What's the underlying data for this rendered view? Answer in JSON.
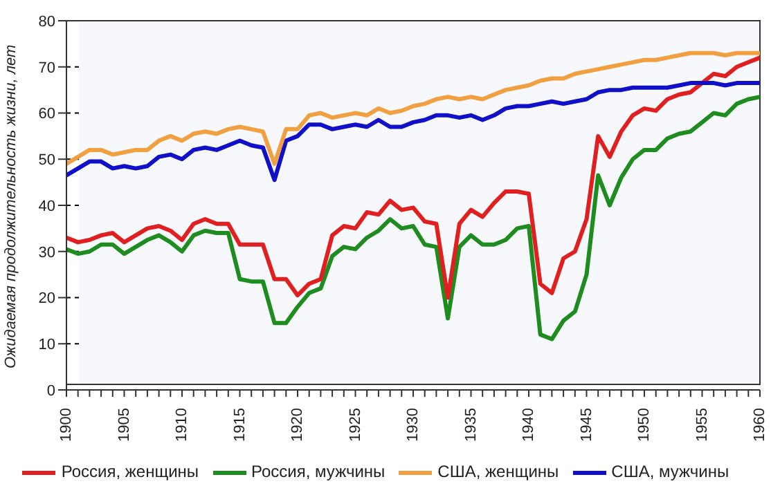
{
  "chart_data": {
    "type": "line",
    "ylabel": "Ожидаемая продолжительность жизни, лет",
    "x": [
      1900,
      1901,
      1902,
      1903,
      1904,
      1905,
      1906,
      1907,
      1908,
      1909,
      1910,
      1911,
      1912,
      1913,
      1914,
      1915,
      1916,
      1917,
      1918,
      1919,
      1920,
      1921,
      1922,
      1923,
      1924,
      1925,
      1926,
      1927,
      1928,
      1929,
      1930,
      1931,
      1932,
      1933,
      1934,
      1935,
      1936,
      1937,
      1938,
      1939,
      1940,
      1941,
      1942,
      1943,
      1944,
      1945,
      1946,
      1947,
      1948,
      1949,
      1950,
      1951,
      1952,
      1953,
      1954,
      1955,
      1956,
      1957,
      1958,
      1959,
      1960
    ],
    "series": [
      {
        "name": "Россия, мужчины",
        "color": "#1e8c1e",
        "values": [
          30.5,
          29.5,
          30,
          31.5,
          31.5,
          29.5,
          31,
          32.5,
          33.5,
          32,
          30,
          33.5,
          34.5,
          34,
          34,
          24,
          23.5,
          23.5,
          14.5,
          14.5,
          18,
          21,
          22,
          29,
          31,
          30.5,
          33,
          34.5,
          37,
          35,
          35.5,
          31.5,
          31,
          15.5,
          31,
          33.5,
          31.5,
          31.5,
          32.5,
          35,
          35.5,
          12,
          11,
          15,
          17,
          25,
          46.5,
          40,
          46,
          50,
          52,
          52,
          54.5,
          55.5,
          56,
          58,
          60,
          59.5,
          62,
          63,
          63.5
        ]
      },
      {
        "name": "Россия, женщины",
        "color": "#e02020",
        "values": [
          33,
          32,
          32.5,
          33.5,
          34,
          32,
          33.5,
          35,
          35.5,
          34.5,
          32.5,
          36,
          37,
          36,
          36,
          31.5,
          31.5,
          31.5,
          24,
          24,
          20.5,
          23,
          24,
          33.5,
          35.5,
          35,
          38.5,
          38,
          41,
          39,
          39.5,
          36.5,
          36,
          20,
          36,
          39,
          37.5,
          40.5,
          43,
          43,
          42.5,
          23,
          21,
          28.5,
          30,
          37,
          55,
          50.5,
          56,
          59.5,
          61,
          60.5,
          63,
          64,
          64.5,
          66.5,
          68.5,
          68,
          70,
          71,
          72
        ]
      },
      {
        "name": "США, мужчины",
        "color": "#1010c8",
        "values": [
          46.5,
          48,
          49.5,
          49.5,
          48,
          48.5,
          48,
          48.5,
          50.5,
          51,
          50,
          52,
          52.5,
          52,
          53,
          54,
          53,
          52.5,
          45.5,
          54,
          55,
          57.5,
          57.5,
          56.5,
          57,
          57.5,
          57,
          58.5,
          57,
          57,
          58,
          58.5,
          59.5,
          59.5,
          59,
          59.5,
          58.5,
          59.5,
          61,
          61.5,
          61.5,
          62,
          62.5,
          62,
          62.5,
          63,
          64.5,
          65,
          65,
          65.5,
          65.5,
          65.5,
          65.5,
          66,
          66.5,
          66.5,
          66.5,
          66,
          66.5,
          66.5,
          66.5
        ]
      },
      {
        "name": "США, женщины",
        "color": "#f0a040",
        "values": [
          49,
          50.5,
          52,
          52,
          51,
          51.5,
          52,
          52,
          54,
          55,
          54,
          55.5,
          56,
          55.5,
          56.5,
          57,
          56.5,
          56,
          49,
          56.5,
          56.5,
          59.5,
          60,
          59,
          59.5,
          60,
          59.5,
          61,
          60,
          60.5,
          61.5,
          62,
          63,
          63.5,
          63,
          63.5,
          63,
          64,
          65,
          65.5,
          66,
          67,
          67.5,
          67.5,
          68.5,
          69,
          69.5,
          70,
          70.5,
          71,
          71.5,
          71.5,
          72,
          72.5,
          73,
          73,
          73,
          72.5,
          73,
          73,
          73
        ]
      }
    ],
    "xlim": [
      1900,
      1960
    ],
    "xticks": [
      1900,
      {
        "value": 1901,
        "label": null
      },
      {
        "value": 1902,
        "label": null
      },
      {
        "value": 1903,
        "label": null
      },
      {
        "value": 1904,
        "label": null
      },
      1905,
      {
        "value": 1906,
        "label": null
      },
      {
        "value": 1907,
        "label": null
      },
      {
        "value": 1908,
        "label": null
      },
      {
        "value": 1909,
        "label": null
      },
      1910,
      {
        "value": 1911,
        "label": null
      },
      {
        "value": 1912,
        "label": null
      },
      {
        "value": 1913,
        "label": null
      },
      {
        "value": 1914,
        "label": null
      },
      1915,
      {
        "value": 1916,
        "label": null
      },
      {
        "value": 1917,
        "label": null
      },
      {
        "value": 1918,
        "label": null
      },
      {
        "value": 1919,
        "label": null
      },
      1920,
      {
        "value": 1921,
        "label": null
      },
      {
        "value": 1922,
        "label": null
      },
      {
        "value": 1923,
        "label": null
      },
      {
        "value": 1924,
        "label": null
      },
      1925,
      {
        "value": 1926,
        "label": null
      },
      {
        "value": 1927,
        "label": null
      },
      {
        "value": 1928,
        "label": null
      },
      {
        "value": 1929,
        "label": null
      },
      1930,
      {
        "value": 1931,
        "label": null
      },
      {
        "value": 1932,
        "label": null
      },
      {
        "value": 1933,
        "label": null
      },
      {
        "value": 1934,
        "label": null
      },
      1935,
      {
        "value": 1936,
        "label": null
      },
      {
        "value": 1937,
        "label": null
      },
      {
        "value": 1938,
        "label": null
      },
      {
        "value": 1939,
        "label": null
      },
      1940,
      {
        "value": 1941,
        "label": null
      },
      {
        "value": 1942,
        "label": null
      },
      {
        "value": 1943,
        "label": null
      },
      {
        "value": 1944,
        "label": null
      },
      1945,
      {
        "value": 1946,
        "label": null
      },
      {
        "value": 1947,
        "label": null
      },
      {
        "value": 1948,
        "label": null
      },
      {
        "value": 1949,
        "label": null
      },
      1950,
      {
        "value": 1951,
        "label": null
      },
      {
        "value": 1952,
        "label": null
      },
      {
        "value": 1953,
        "label": null
      },
      {
        "value": 1954,
        "label": null
      },
      1955,
      {
        "value": 1956,
        "label": null
      },
      {
        "value": 1957,
        "label": null
      },
      {
        "value": 1958,
        "label": null
      },
      {
        "value": 1959,
        "label": null
      },
      1960
    ],
    "ylim": [
      0,
      80
    ],
    "yticks": [
      0,
      10,
      20,
      30,
      40,
      50,
      60,
      70,
      80
    ],
    "grid": "y",
    "legend": "bottom",
    "marker": "none",
    "line_style": "solid"
  }
}
